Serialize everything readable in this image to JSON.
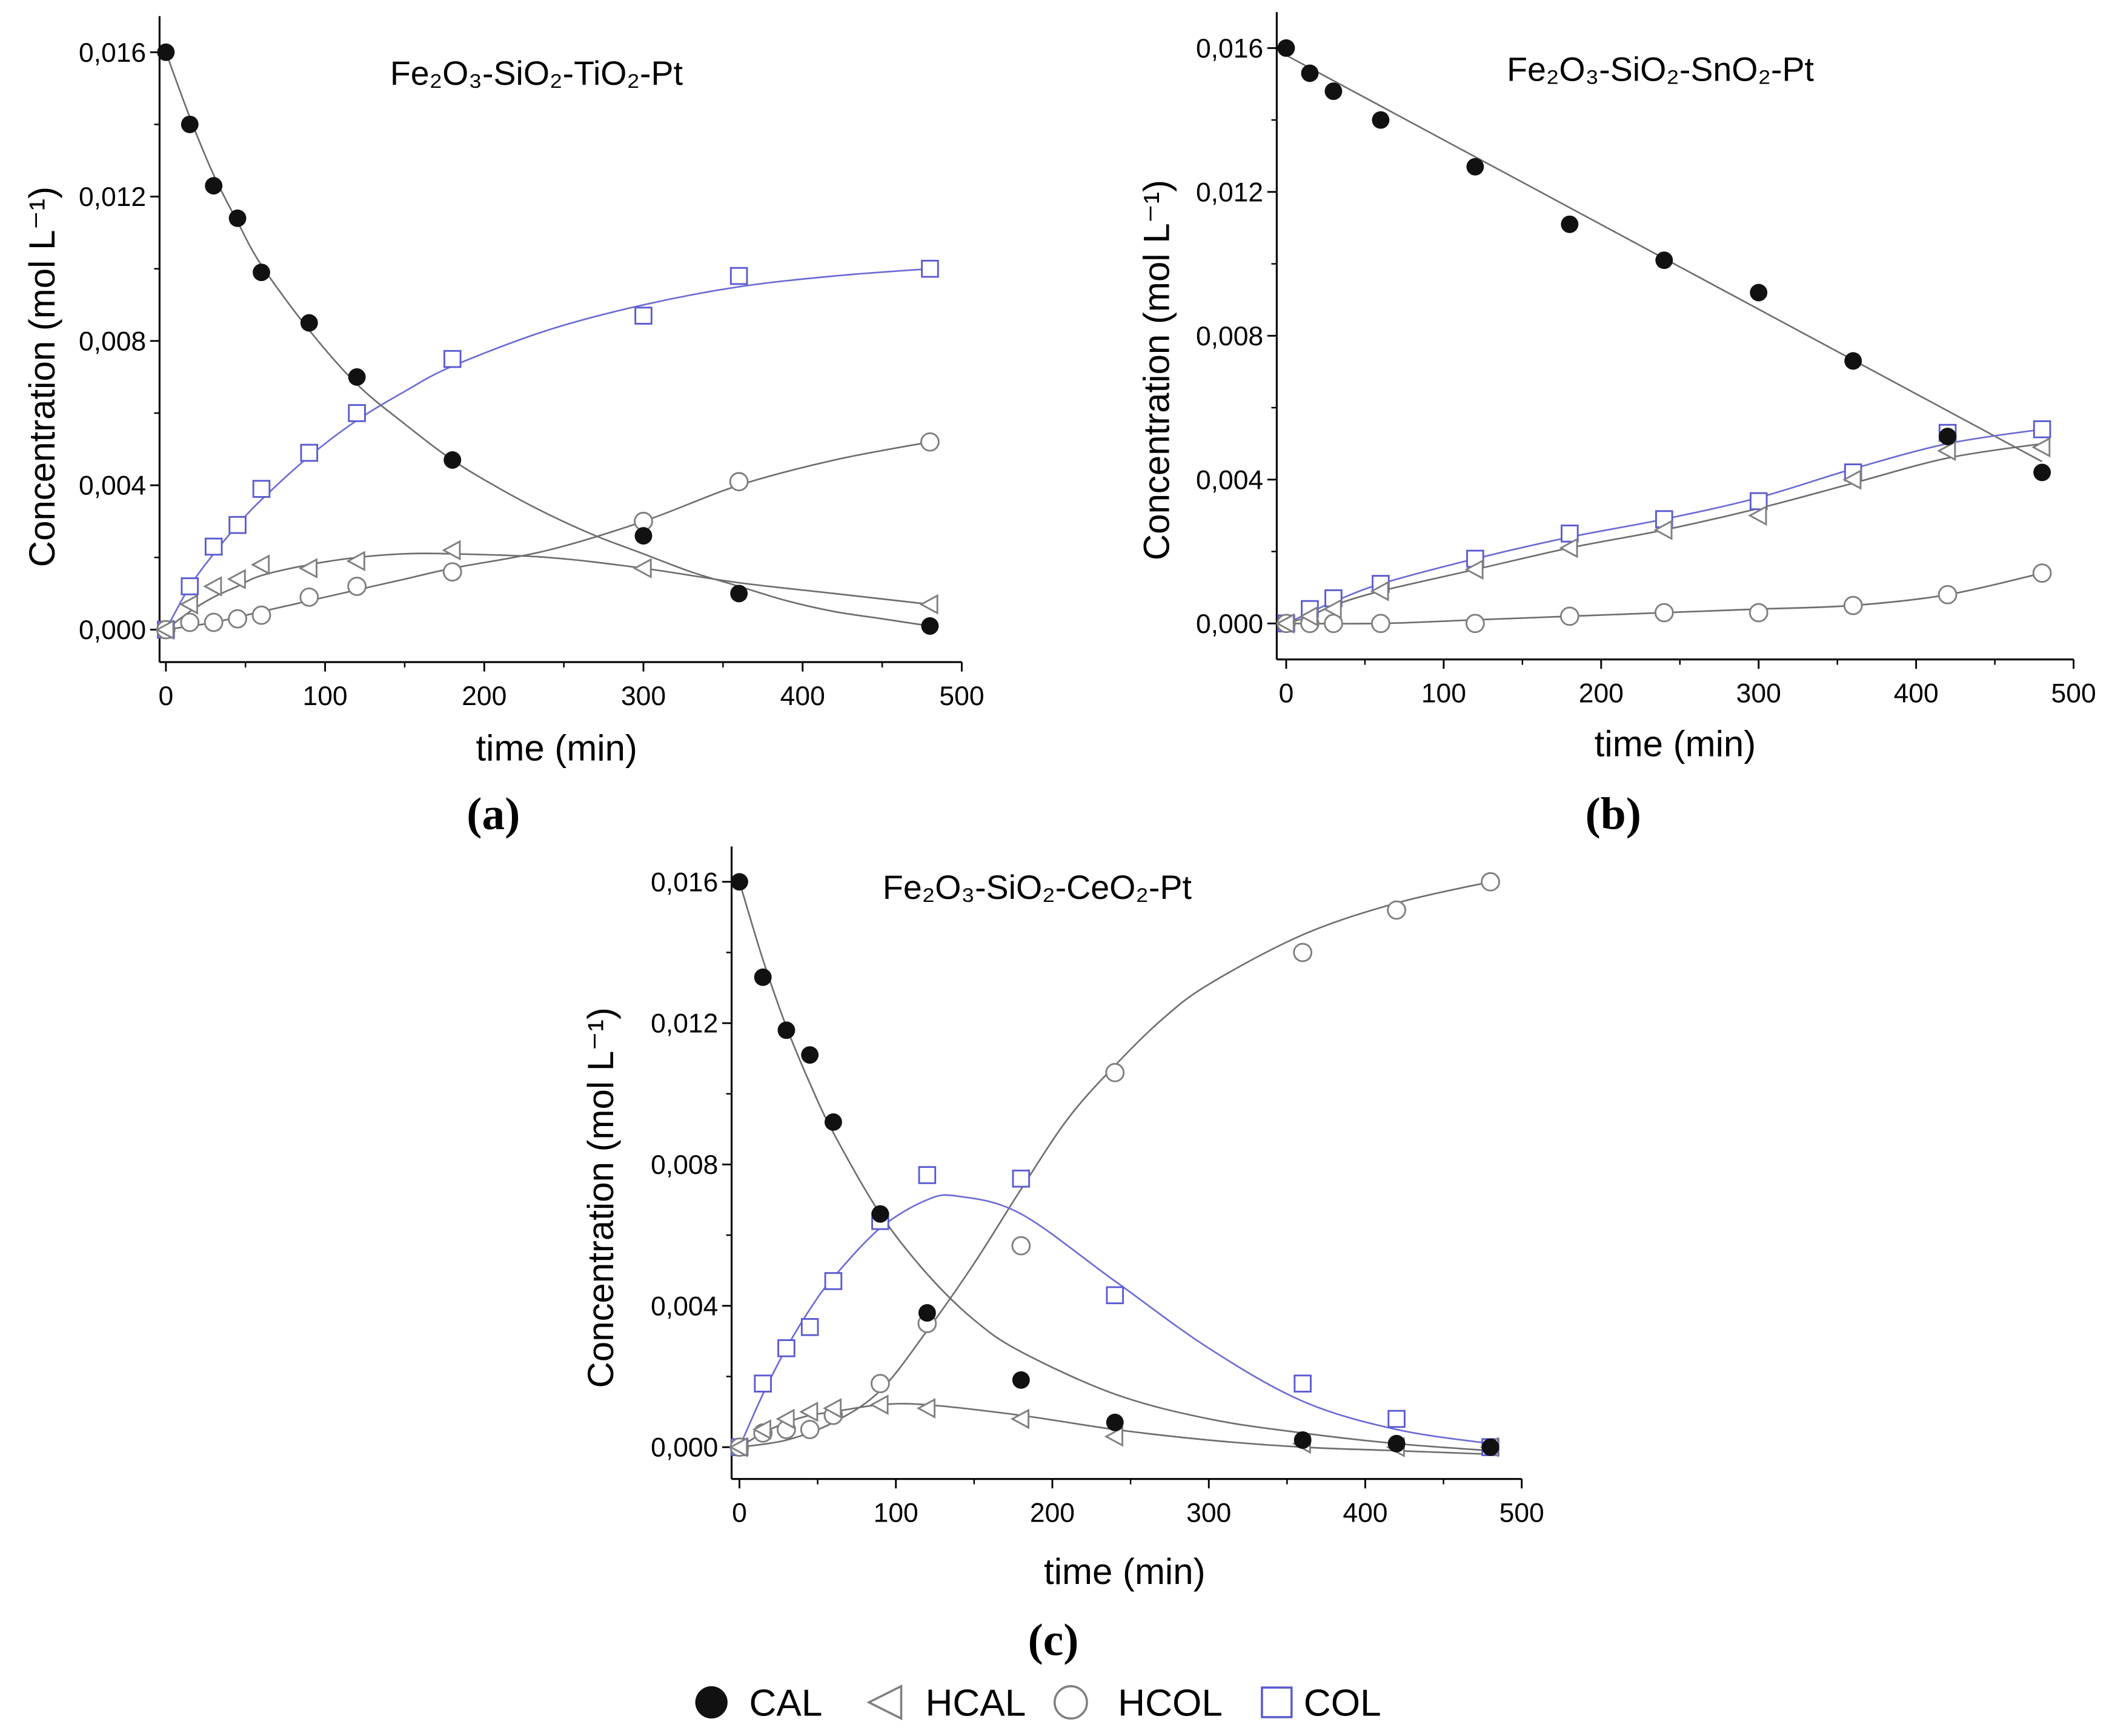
{
  "colors": {
    "cal": "#111111",
    "hcal": "#7f7f7f",
    "hcol": "#7f7f7f",
    "col": "#5a5ad2",
    "fit": "#6e6e6e",
    "col_fit": "#6b6bd4",
    "axis": "#000000",
    "marker_fill": "#ffffff"
  },
  "legend": {
    "position": "bottom",
    "entries": [
      {
        "label": "CAL",
        "marker": "filled-circle"
      },
      {
        "label": "HCAL",
        "marker": "open-triangle-left"
      },
      {
        "label": "HCOL",
        "marker": "open-circle"
      },
      {
        "label": "COL",
        "marker": "open-square"
      }
    ]
  },
  "chart_data": [
    {
      "type": "scatter",
      "panel_label": "(a)",
      "title": "Fe₂O₃-SiO₂-TiO₂-Pt",
      "xlabel": "time (min)",
      "ylabel": "Concentration (mol L⁻¹)",
      "xlim": [
        -4,
        500
      ],
      "ylim": [
        -0.0009,
        0.017
      ],
      "xticks": [
        0,
        100,
        200,
        300,
        400,
        500
      ],
      "xtick_labels": [
        "0",
        "100",
        "200",
        "300",
        "400",
        "500"
      ],
      "yticks": [
        0,
        0.004,
        0.008,
        0.012,
        0.016
      ],
      "ytick_labels": [
        "0,000",
        "0,004",
        "0,008",
        "0,012",
        "0,016"
      ],
      "series": [
        {
          "name": "CAL",
          "marker": "filled-circle",
          "x": [
            0,
            15,
            30,
            45,
            60,
            90,
            120,
            180,
            300,
            360,
            480
          ],
          "y": [
            0.016,
            0.014,
            0.0123,
            0.0114,
            0.0099,
            0.0085,
            0.007,
            0.0047,
            0.0026,
            0.001,
            0.0001
          ],
          "fit": {
            "x": [
              0,
              15,
              30,
              45,
              60,
              90,
              120,
              150,
              180,
              210,
              240,
              270,
              300,
              330,
              360,
              390,
              420,
              450,
              480
            ],
            "y": [
              0.016,
              0.0142,
              0.0126,
              0.0113,
              0.0101,
              0.0083,
              0.0068,
              0.0057,
              0.0047,
              0.0039,
              0.0032,
              0.0026,
              0.0021,
              0.0016,
              0.0012,
              0.0008,
              0.0005,
              0.0003,
              0.0001
            ]
          }
        },
        {
          "name": "HCAL",
          "marker": "open-triangle-left",
          "x": [
            0,
            15,
            30,
            45,
            60,
            90,
            120,
            180,
            300,
            480
          ],
          "y": [
            0,
            0.0007,
            0.0012,
            0.0014,
            0.0018,
            0.0017,
            0.0019,
            0.0022,
            0.0017,
            0.0007
          ],
          "fit": {
            "x": [
              0,
              15,
              30,
              45,
              60,
              90,
              120,
              150,
              180,
              240,
              300,
              360,
              420,
              480
            ],
            "y": [
              0,
              0.0005,
              0.0009,
              0.0012,
              0.0015,
              0.0018,
              0.002,
              0.0021,
              0.0021,
              0.002,
              0.0017,
              0.0013,
              0.001,
              0.0007
            ]
          }
        },
        {
          "name": "HCOL",
          "marker": "open-circle",
          "x": [
            0,
            15,
            30,
            45,
            60,
            90,
            120,
            180,
            300,
            360,
            480
          ],
          "y": [
            0,
            0.0002,
            0.0002,
            0.0003,
            0.0004,
            0.0009,
            0.0012,
            0.0016,
            0.003,
            0.0041,
            0.0052
          ],
          "fit": {
            "x": [
              0,
              30,
              60,
              90,
              120,
              150,
              180,
              240,
              300,
              360,
              420,
              480
            ],
            "y": [
              0,
              0.0002,
              0.0005,
              0.0008,
              0.0011,
              0.0014,
              0.0017,
              0.0022,
              0.003,
              0.004,
              0.0047,
              0.0052
            ]
          }
        },
        {
          "name": "COL",
          "marker": "open-square",
          "x": [
            0,
            15,
            30,
            45,
            60,
            90,
            120,
            180,
            300,
            360,
            480
          ],
          "y": [
            0,
            0.0012,
            0.0023,
            0.0029,
            0.0039,
            0.0049,
            0.006,
            0.0075,
            0.0087,
            0.0098,
            0.01
          ],
          "fit": {
            "x": [
              0,
              15,
              30,
              45,
              60,
              90,
              120,
              150,
              180,
              240,
              300,
              360,
              420,
              480
            ],
            "y": [
              0,
              0.0012,
              0.0021,
              0.0029,
              0.0036,
              0.0048,
              0.0058,
              0.0066,
              0.0073,
              0.0083,
              0.009,
              0.0095,
              0.0098,
              0.01
            ]
          }
        }
      ]
    },
    {
      "type": "scatter",
      "panel_label": "(b)",
      "title": "Fe₂O₃-SiO₂-SnO₂-Pt",
      "xlabel": "time (min)",
      "ylabel": "Concentration (mol L⁻¹)",
      "xlim": [
        -6,
        500
      ],
      "ylim": [
        -0.001,
        0.017
      ],
      "xticks": [
        0,
        100,
        200,
        300,
        400,
        500
      ],
      "xtick_labels": [
        "0",
        "100",
        "200",
        "300",
        "400",
        "500"
      ],
      "yticks": [
        0,
        0.004,
        0.008,
        0.012,
        0.016
      ],
      "ytick_labels": [
        "0,000",
        "0,004",
        "0,008",
        "0,012",
        "0,016"
      ],
      "series": [
        {
          "name": "CAL",
          "marker": "filled-circle",
          "x": [
            0,
            15,
            30,
            60,
            120,
            180,
            240,
            300,
            360,
            420,
            480
          ],
          "y": [
            0.016,
            0.0153,
            0.0148,
            0.014,
            0.0127,
            0.0111,
            0.0101,
            0.0092,
            0.0073,
            0.0052,
            0.0042
          ],
          "fit": {
            "x": [
              0,
              480
            ],
            "y": [
              0.0158,
              0.0045
            ]
          }
        },
        {
          "name": "HCAL",
          "marker": "open-triangle-left",
          "x": [
            0,
            15,
            30,
            60,
            120,
            180,
            240,
            300,
            360,
            420,
            480
          ],
          "y": [
            0,
            0.0002,
            0.0004,
            0.0009,
            0.0015,
            0.0021,
            0.0026,
            0.003,
            0.004,
            0.0048,
            0.0049
          ],
          "fit": {
            "x": [
              0,
              15,
              30,
              60,
              120,
              180,
              240,
              300,
              360,
              420,
              480
            ],
            "y": [
              0,
              0.0002,
              0.0005,
              0.0009,
              0.0015,
              0.0021,
              0.0026,
              0.0032,
              0.0039,
              0.0046,
              0.005
            ]
          }
        },
        {
          "name": "HCOL",
          "marker": "open-circle",
          "x": [
            0,
            15,
            30,
            60,
            120,
            180,
            240,
            300,
            360,
            420,
            480
          ],
          "y": [
            0,
            0,
            0,
            0,
            0,
            0.0002,
            0.0003,
            0.0003,
            0.0005,
            0.0008,
            0.0014
          ],
          "fit": {
            "x": [
              0,
              60,
              120,
              180,
              240,
              300,
              360,
              420,
              480
            ],
            "y": [
              0,
              0.0,
              0.0001,
              0.0002,
              0.0003,
              0.0004,
              0.0005,
              0.0008,
              0.0014
            ]
          }
        },
        {
          "name": "COL",
          "marker": "open-square",
          "x": [
            0,
            15,
            30,
            60,
            120,
            180,
            240,
            300,
            360,
            420,
            480
          ],
          "y": [
            0,
            0.0004,
            0.0007,
            0.0011,
            0.0018,
            0.0025,
            0.0029,
            0.0034,
            0.0042,
            0.0053,
            0.0054
          ],
          "fit": {
            "x": [
              0,
              15,
              30,
              60,
              120,
              180,
              240,
              300,
              360,
              420,
              480
            ],
            "y": [
              0,
              0.0003,
              0.0006,
              0.0011,
              0.0018,
              0.0024,
              0.0029,
              0.0035,
              0.0043,
              0.005,
              0.0054
            ]
          }
        }
      ]
    },
    {
      "type": "scatter",
      "panel_label": "(c)",
      "title": "Fe₂O₃-SiO₂-CeO₂-Pt",
      "xlabel": "time (min)",
      "ylabel": "Concentration (mol L⁻¹)",
      "xlim": [
        -5,
        500
      ],
      "ylim": [
        -0.0009,
        0.017
      ],
      "xticks": [
        0,
        100,
        200,
        300,
        400,
        500
      ],
      "xtick_labels": [
        "0",
        "100",
        "200",
        "300",
        "400",
        "500"
      ],
      "yticks": [
        0,
        0.004,
        0.008,
        0.012,
        0.016
      ],
      "ytick_labels": [
        "0,000",
        "0,004",
        "0,008",
        "0,012",
        "0,016"
      ],
      "series": [
        {
          "name": "CAL",
          "marker": "filled-circle",
          "x": [
            0,
            15,
            30,
            45,
            60,
            90,
            120,
            180,
            240,
            360,
            420,
            480
          ],
          "y": [
            0.016,
            0.0133,
            0.0118,
            0.0111,
            0.0092,
            0.0066,
            0.0038,
            0.0019,
            0.0007,
            0.0002,
            0.0001,
            0.0
          ],
          "fit": {
            "x": [
              0,
              15,
              30,
              45,
              60,
              90,
              120,
              150,
              180,
              240,
              300,
              360,
              420,
              480
            ],
            "y": [
              0.016,
              0.0138,
              0.0119,
              0.0103,
              0.0089,
              0.0066,
              0.0049,
              0.0036,
              0.0027,
              0.0015,
              0.0008,
              0.0004,
              0.0001,
              -0.0001
            ]
          }
        },
        {
          "name": "HCAL",
          "marker": "open-triangle-left",
          "x": [
            0,
            15,
            30,
            45,
            60,
            90,
            120,
            180,
            240,
            360,
            420,
            480
          ],
          "y": [
            0,
            0.0005,
            0.0008,
            0.001,
            0.0011,
            0.0012,
            0.0011,
            0.0008,
            0.0003,
            0.0001,
            0.0,
            0.0
          ],
          "fit": {
            "x": [
              0,
              15,
              30,
              45,
              60,
              90,
              120,
              180,
              240,
              300,
              360,
              420,
              480
            ],
            "y": [
              0,
              0.0004,
              0.0007,
              0.0009,
              0.001,
              0.0012,
              0.0012,
              0.0009,
              0.0005,
              0.0002,
              0.0,
              -0.0001,
              -0.0002
            ]
          }
        },
        {
          "name": "HCOL",
          "marker": "open-circle",
          "x": [
            0,
            15,
            30,
            45,
            60,
            90,
            120,
            180,
            240,
            360,
            420,
            480
          ],
          "y": [
            0,
            0.0004,
            0.0005,
            0.0005,
            0.0009,
            0.0018,
            0.0035,
            0.0057,
            0.0106,
            0.014,
            0.0152,
            0.016
          ],
          "fit": {
            "x": [
              0,
              30,
              60,
              90,
              120,
              150,
              180,
              210,
              240,
              270,
              300,
              360,
              420,
              480
            ],
            "y": [
              0,
              0.0002,
              0.0007,
              0.0016,
              0.0033,
              0.0052,
              0.0073,
              0.0093,
              0.0108,
              0.0121,
              0.0131,
              0.0145,
              0.0154,
              0.016
            ]
          }
        },
        {
          "name": "COL",
          "marker": "open-square",
          "x": [
            0,
            15,
            30,
            45,
            60,
            90,
            120,
            180,
            240,
            360,
            420,
            480
          ],
          "y": [
            0,
            0.0018,
            0.0028,
            0.0034,
            0.0047,
            0.0064,
            0.0077,
            0.0076,
            0.0043,
            0.0018,
            0.0008,
            0.0
          ],
          "fit": {
            "x": [
              0,
              15,
              30,
              45,
              60,
              90,
              120,
              140,
              180,
              240,
              300,
              360,
              420,
              480
            ],
            "y": [
              0,
              0.0015,
              0.0028,
              0.0039,
              0.0048,
              0.0062,
              0.007,
              0.0071,
              0.0066,
              0.0047,
              0.0028,
              0.0013,
              0.0005,
              0.0001
            ]
          }
        }
      ]
    }
  ]
}
